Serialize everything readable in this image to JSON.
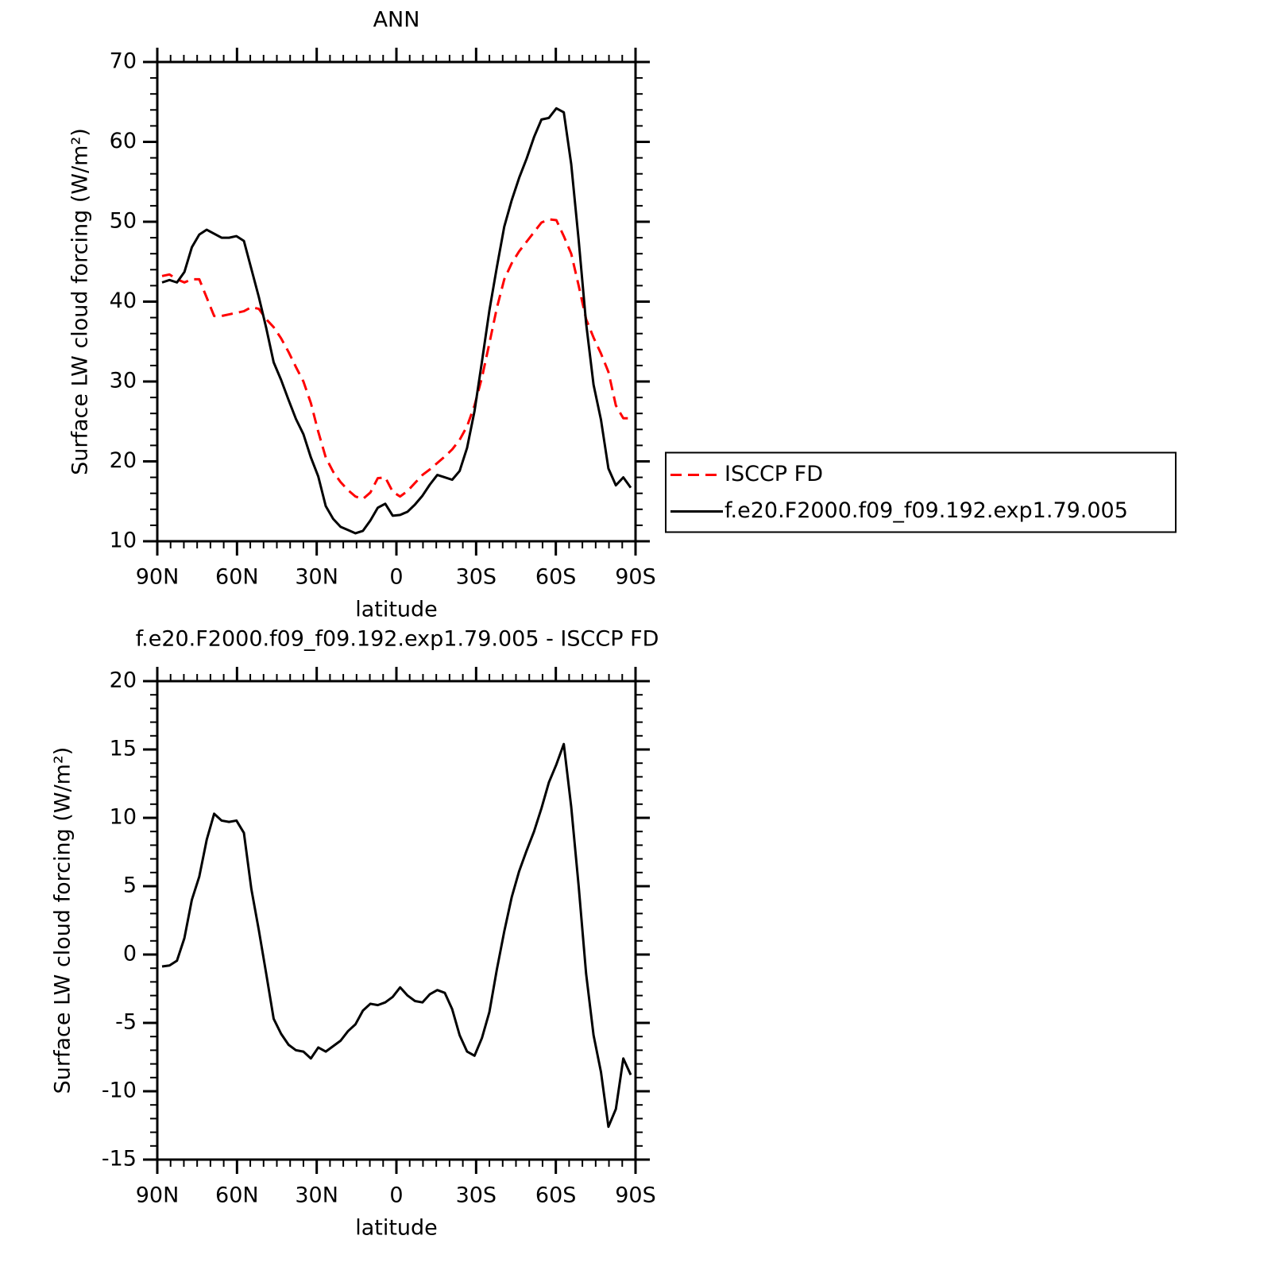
{
  "chart_data": [
    {
      "type": "line",
      "title": "ANN",
      "xlabel": "latitude",
      "ylabel": "Surface LW cloud forcing (W/m²)",
      "x": [
        88.2,
        85.4,
        82.6,
        79.8,
        77.0,
        74.2,
        71.4,
        68.6,
        65.8,
        63.0,
        60.2,
        57.4,
        54.6,
        51.8,
        49.0,
        46.2,
        43.4,
        40.6,
        37.8,
        35.0,
        32.2,
        29.4,
        26.6,
        23.8,
        21.0,
        18.2,
        15.4,
        12.6,
        9.8,
        7.0,
        4.2,
        1.4,
        -1.4,
        -4.2,
        -7.0,
        -9.8,
        -12.6,
        -15.4,
        -18.2,
        -21.0,
        -23.8,
        -26.6,
        -29.4,
        -32.2,
        -35.0,
        -37.8,
        -40.6,
        -43.4,
        -46.2,
        -49.0,
        -51.8,
        -54.6,
        -57.4,
        -60.2,
        -63.0,
        -65.8,
        -68.6,
        -71.4,
        -74.2,
        -77.0,
        -79.8,
        -82.6,
        -85.4,
        -88.2
      ],
      "series": [
        {
          "name": "ISCCP FD",
          "color": "#ff0000",
          "dashed": true,
          "values": [
            43.2,
            43.4,
            42.8,
            42.4,
            42.8,
            42.8,
            40.5,
            38.2,
            38.2,
            38.4,
            38.6,
            38.8,
            39.3,
            39.1,
            37.8,
            36.8,
            35.4,
            33.7,
            31.8,
            30.0,
            27.3,
            23.7,
            20.5,
            18.7,
            17.4,
            16.4,
            15.6,
            15.3,
            16.1,
            17.9,
            18.0,
            16.2,
            15.6,
            16.3,
            17.3,
            18.3,
            19.0,
            19.8,
            20.6,
            21.5,
            22.7,
            24.4,
            27.0,
            30.5,
            34.8,
            39.2,
            42.8,
            44.8,
            46.3,
            47.5,
            48.7,
            49.9,
            50.3,
            50.2,
            48.2,
            46.0,
            42.0,
            37.8,
            35.5,
            33.5,
            31.2,
            27.0,
            25.4,
            25.4
          ]
        },
        {
          "name": "f.e20.F2000.f09_f09.192.exp1.79.005",
          "color": "#000000",
          "dashed": false,
          "values": [
            42.4,
            42.7,
            42.4,
            43.7,
            46.8,
            48.4,
            49.0,
            48.5,
            48.0,
            48.0,
            48.2,
            47.6,
            44.1,
            40.6,
            36.7,
            32.4,
            30.2,
            27.7,
            25.3,
            23.4,
            20.5,
            18.1,
            14.4,
            12.8,
            11.8,
            11.4,
            11.0,
            11.3,
            12.6,
            14.2,
            14.7,
            13.2,
            13.3,
            13.7,
            14.6,
            15.7,
            17.1,
            18.3,
            18.0,
            17.7,
            18.8,
            21.7,
            26.3,
            32.5,
            38.9,
            44.3,
            49.4,
            52.7,
            55.5,
            57.9,
            60.6,
            62.8,
            63.0,
            64.2,
            63.7,
            57.2,
            47.7,
            37.3,
            29.6,
            25.2,
            19.1,
            17.0,
            18.0,
            16.7
          ]
        }
      ],
      "xlim": [
        90,
        -90
      ],
      "xticks": [
        {
          "value": 90,
          "label": "90N"
        },
        {
          "value": 60,
          "label": "60N"
        },
        {
          "value": 30,
          "label": "30N"
        },
        0,
        {
          "value": -30,
          "label": "30S"
        },
        {
          "value": -60,
          "label": "60S"
        },
        {
          "value": -90,
          "label": "90S"
        }
      ],
      "ylim": [
        10,
        70
      ],
      "yticks": [
        10,
        20,
        30,
        40,
        50,
        60,
        70
      ],
      "legend": "right"
    },
    {
      "type": "line",
      "title": "f.e20.F2000.f09_f09.192.exp1.79.005 - ISCCP FD",
      "xlabel": "latitude",
      "ylabel": "Surface LW cloud forcing (W/m²)",
      "x": [
        88.2,
        85.4,
        82.6,
        79.8,
        77.0,
        74.2,
        71.4,
        68.6,
        65.8,
        63.0,
        60.2,
        57.4,
        54.6,
        51.8,
        49.0,
        46.2,
        43.4,
        40.6,
        37.8,
        35.0,
        32.2,
        29.4,
        26.6,
        23.8,
        21.0,
        18.2,
        15.4,
        12.6,
        9.8,
        7.0,
        4.2,
        1.4,
        -1.4,
        -4.2,
        -7.0,
        -9.8,
        -12.6,
        -15.4,
        -18.2,
        -21.0,
        -23.8,
        -26.6,
        -29.4,
        -32.2,
        -35.0,
        -37.8,
        -40.6,
        -43.4,
        -46.2,
        -49.0,
        -51.8,
        -54.6,
        -57.4,
        -60.2,
        -63.0,
        -65.8,
        -68.6,
        -71.4,
        -74.2,
        -77.0,
        -79.8,
        -82.6,
        -85.4,
        -88.2
      ],
      "series": [
        {
          "color": "#000000",
          "dashed": false,
          "values": [
            -0.87,
            -0.8,
            -0.45,
            1.2,
            4.0,
            5.7,
            8.4,
            10.3,
            9.8,
            9.7,
            9.8,
            8.9,
            4.8,
            1.8,
            -1.4,
            -4.7,
            -5.8,
            -6.6,
            -7.0,
            -7.1,
            -7.6,
            -6.8,
            -7.1,
            -6.7,
            -6.3,
            -5.6,
            -5.1,
            -4.1,
            -3.6,
            -3.7,
            -3.5,
            -3.1,
            -2.4,
            -3.0,
            -3.4,
            -3.5,
            -2.9,
            -2.6,
            -2.8,
            -4.0,
            -5.9,
            -7.1,
            -7.4,
            -6.1,
            -4.2,
            -1.1,
            1.7,
            4.2,
            6.1,
            7.6,
            9.0,
            10.7,
            12.6,
            13.9,
            15.4,
            10.8,
            5.0,
            -1.4,
            -5.9,
            -8.6,
            -12.6,
            -11.3,
            -7.6,
            -8.8
          ]
        }
      ],
      "xlim": [
        90,
        -90
      ],
      "xticks": [
        {
          "value": 90,
          "label": "90N"
        },
        {
          "value": 60,
          "label": "60N"
        },
        {
          "value": 30,
          "label": "30N"
        },
        0,
        {
          "value": -30,
          "label": "30S"
        },
        {
          "value": -60,
          "label": "60S"
        },
        {
          "value": -90,
          "label": "90S"
        }
      ],
      "ylim": [
        -15,
        20
      ],
      "yticks": [
        -15,
        -10,
        -5,
        0,
        5,
        10,
        15,
        20
      ]
    }
  ]
}
